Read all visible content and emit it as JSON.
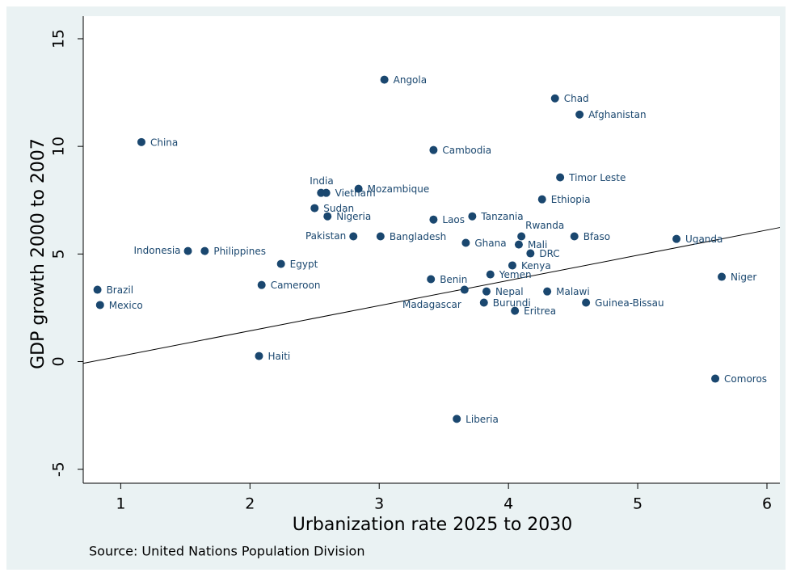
{
  "chart_data": {
    "type": "scatter",
    "x_label": "Urbanization rate 2025 to 2030",
    "y_label": "GDP growth 2000 to 2007",
    "note": "Source: United Nations Population Division",
    "color": "#1a476f",
    "xlim": [
      0.71,
      6.1
    ],
    "ylim": [
      -5.65,
      16.05
    ],
    "xticks": [
      1,
      2,
      3,
      4,
      5,
      6
    ],
    "yticks": [
      -5,
      0,
      5,
      10,
      15
    ],
    "grid": false,
    "labels": [
      "Angola",
      "Chad",
      "Afghanistan",
      "China",
      "Cambodia",
      "Timor Leste",
      "India",
      "Vietnam",
      "Mozambique",
      "Ethiopia",
      "Sudan",
      "Nigeria",
      "Laos",
      "Tanzania",
      "Rwanda",
      "Bfaso",
      "Uganda",
      "Pakistan",
      "Bangladesh",
      "Ghana",
      "Mali",
      "DRC",
      "Indonesia",
      "Philippines",
      "Egypt",
      "Kenya",
      "Yemen",
      "Benin",
      "Niger",
      "Brazil",
      "Cameroon",
      "Madagascar",
      "Nepal",
      "Malawi",
      "Mexico",
      "Burundi",
      "Guinea-Bissau",
      "Eritrea",
      "Haiti",
      "Comoros",
      "Liberia"
    ],
    "x": [
      3.04,
      4.36,
      4.55,
      1.16,
      3.42,
      4.4,
      2.55,
      2.59,
      2.84,
      4.26,
      2.5,
      2.6,
      3.42,
      3.72,
      4.1,
      4.51,
      5.3,
      2.8,
      3.01,
      3.67,
      4.08,
      4.17,
      1.52,
      1.65,
      2.24,
      4.03,
      3.86,
      3.4,
      5.65,
      0.82,
      2.09,
      3.66,
      3.83,
      4.3,
      0.84,
      3.81,
      4.6,
      4.05,
      2.07,
      5.6,
      3.6
    ],
    "y": [
      13.1,
      12.23,
      11.48,
      10.2,
      9.83,
      8.56,
      7.84,
      7.84,
      8.03,
      7.54,
      7.13,
      6.75,
      6.6,
      6.75,
      5.82,
      5.82,
      5.7,
      5.82,
      5.82,
      5.52,
      5.44,
      5.03,
      5.14,
      5.14,
      4.54,
      4.47,
      4.05,
      3.83,
      3.94,
      3.34,
      3.56,
      3.34,
      3.26,
      3.26,
      2.63,
      2.74,
      2.74,
      2.36,
      0.26,
      -0.79,
      -2.66
    ],
    "fit_line": {
      "x": [
        0.71,
        6.1
      ],
      "y": [
        -0.08,
        6.23
      ]
    }
  }
}
